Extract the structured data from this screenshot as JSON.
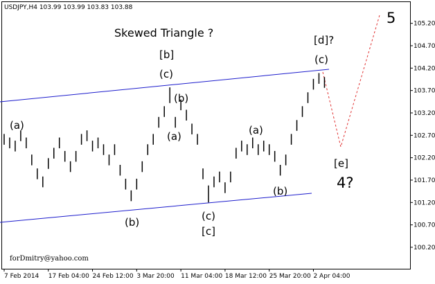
{
  "chart_data": {
    "type": "ohlc",
    "title": "USDJPY,H4  103.99 103.99 103.83 103.88",
    "watermark": "forDmitry@yahoo.com",
    "color": "#000000",
    "high": [
      102.73,
      102.65,
      102.58,
      102.81,
      102.65,
      102.27,
      101.96,
      101.78,
      102.19,
      102.42,
      102.65,
      102.35,
      102.12,
      102.35,
      102.73,
      102.81,
      102.58,
      102.65,
      102.5,
      102.27,
      102.5,
      102.04,
      101.73,
      101.47,
      101.73,
      102.12,
      102.5,
      102.73,
      103.11,
      103.35,
      103.77,
      103.11,
      103.5,
      103.27,
      102.96,
      102.73,
      101.96,
      101.58,
      101.78,
      101.89,
      101.65,
      101.89,
      102.42,
      102.58,
      102.5,
      102.65,
      102.5,
      102.58,
      102.5,
      102.35,
      102.04,
      102.27,
      102.73,
      103.04,
      103.35,
      103.66,
      103.96,
      104.09,
      104.0
    ],
    "low": [
      102.49,
      102.41,
      102.34,
      102.57,
      102.41,
      102.03,
      101.72,
      101.54,
      101.95,
      102.18,
      102.41,
      102.11,
      101.88,
      102.11,
      102.49,
      102.57,
      102.34,
      102.41,
      102.26,
      102.03,
      102.26,
      101.8,
      101.49,
      101.23,
      101.49,
      101.88,
      102.26,
      102.49,
      102.87,
      103.11,
      103.42,
      102.87,
      103.26,
      103.03,
      102.72,
      102.49,
      101.72,
      101.2,
      101.54,
      101.65,
      101.41,
      101.65,
      102.18,
      102.34,
      102.26,
      102.41,
      102.26,
      102.34,
      102.26,
      102.11,
      101.8,
      102.03,
      102.49,
      102.8,
      103.11,
      103.42,
      103.72,
      103.85,
      103.76
    ],
    "xlim": [
      -0.5,
      73.5
    ],
    "xticks": [
      {
        "value": 0,
        "label": "7 Feb 2014"
      },
      {
        "value": 8,
        "label": "17 Feb 04:00"
      },
      {
        "value": 16,
        "label": "24 Feb 12:00"
      },
      {
        "value": 24,
        "label": "3 Mar 20:00"
      },
      {
        "value": 32,
        "label": "11 Mar 04:00"
      },
      {
        "value": 40,
        "label": "18 Mar 12:00"
      },
      {
        "value": 48,
        "label": "25 Mar 20:00"
      },
      {
        "value": 56,
        "label": "2 Apr 04:00"
      }
    ],
    "ylim": [
      99.72,
      105.69
    ],
    "yticks": [
      {
        "value": 100.2,
        "label": "100.20"
      },
      {
        "value": 100.7,
        "label": "100.70"
      },
      {
        "value": 101.2,
        "label": "101.20"
      },
      {
        "value": 101.7,
        "label": "101.70"
      },
      {
        "value": 102.2,
        "label": "102.20"
      },
      {
        "value": 102.7,
        "label": "102.70"
      },
      {
        "value": 103.2,
        "label": "103.20"
      },
      {
        "value": 103.7,
        "label": "103.70"
      },
      {
        "value": 104.2,
        "label": "104.20"
      },
      {
        "value": 104.7,
        "label": "104.70"
      },
      {
        "value": 105.2,
        "label": "105.20"
      }
    ],
    "annotations": [
      {
        "text": "Skewed Triangle ?",
        "color": "#1a1acc"
      },
      {
        "text": "[b]",
        "color": "#1a8a1a"
      },
      {
        "text": "(c)",
        "color": "#1a1acc"
      },
      {
        "text": "(b)",
        "color": "#1a1acc"
      },
      {
        "text": "(a)",
        "color": "#1a1acc"
      },
      {
        "text": "(a)",
        "color": "#1a1acc"
      },
      {
        "text": "(b)",
        "color": "#1a1acc"
      },
      {
        "text": "(c)",
        "color": "#1a1acc"
      },
      {
        "text": "[c]",
        "color": "#1a8a1a"
      },
      {
        "text": "(a)",
        "color": "#1a1acc"
      },
      {
        "text": "(b)",
        "color": "#1a1acc"
      },
      {
        "text": "[d]?",
        "color": "#1a8a1a"
      },
      {
        "text": "(c)",
        "color": "#1a1acc"
      },
      {
        "text": "[e]",
        "color": "#1a8a1a"
      },
      {
        "text": "4?",
        "color": "#a83232"
      },
      {
        "text": "5",
        "color": "#a83232"
      }
    ]
  }
}
